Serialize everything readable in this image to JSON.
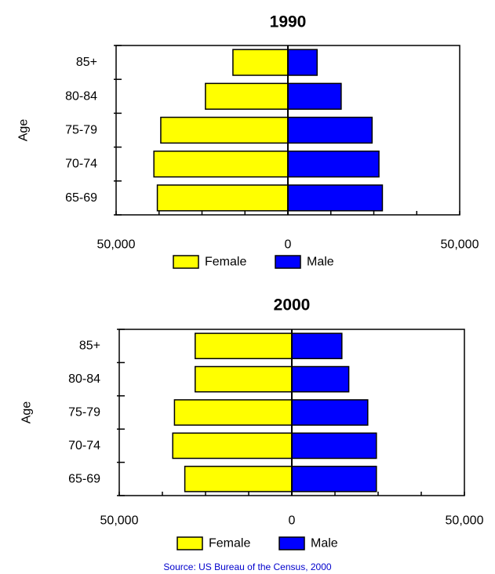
{
  "chart_data": [
    {
      "type": "bar",
      "orientation": "horizontal",
      "title": "1990",
      "ylabel": "Age",
      "categories": [
        "65-69",
        "70-74",
        "75-79",
        "80-84",
        "85+"
      ],
      "series": [
        {
          "name": "Female",
          "values": [
            -38000,
            -39000,
            -37000,
            -24000,
            -16000
          ],
          "color": "#ffff00"
        },
        {
          "name": "Male",
          "values": [
            27500,
            26500,
            24500,
            15500,
            8500
          ],
          "color": "#0000ff"
        }
      ],
      "x_ticks": [
        {
          "value": -50000,
          "label": "50,000"
        },
        {
          "value": 0,
          "label": "0"
        },
        {
          "value": 50000,
          "label": "50,000"
        }
      ],
      "xlim": [
        -50000,
        50000
      ],
      "grid": false,
      "legend": "bottom"
    },
    {
      "type": "bar",
      "orientation": "horizontal",
      "title": "2000",
      "ylabel": "Age",
      "categories": [
        "65-69",
        "70-74",
        "75-79",
        "80-84",
        "85+"
      ],
      "series": [
        {
          "name": "Female",
          "values": [
            -31000,
            -34500,
            -34000,
            -28000,
            -28000
          ],
          "color": "#ffff00"
        },
        {
          "name": "Male",
          "values": [
            24500,
            24500,
            22000,
            16500,
            14500
          ],
          "color": "#0000ff"
        }
      ],
      "x_ticks": [
        {
          "value": -50000,
          "label": "50,000"
        },
        {
          "value": 0,
          "label": "0"
        },
        {
          "value": 50000,
          "label": "50,000"
        }
      ],
      "xlim": [
        -50000,
        50000
      ],
      "grid": false,
      "legend": "bottom"
    }
  ],
  "source": "Source:  US Bureau of the Census, 2000"
}
